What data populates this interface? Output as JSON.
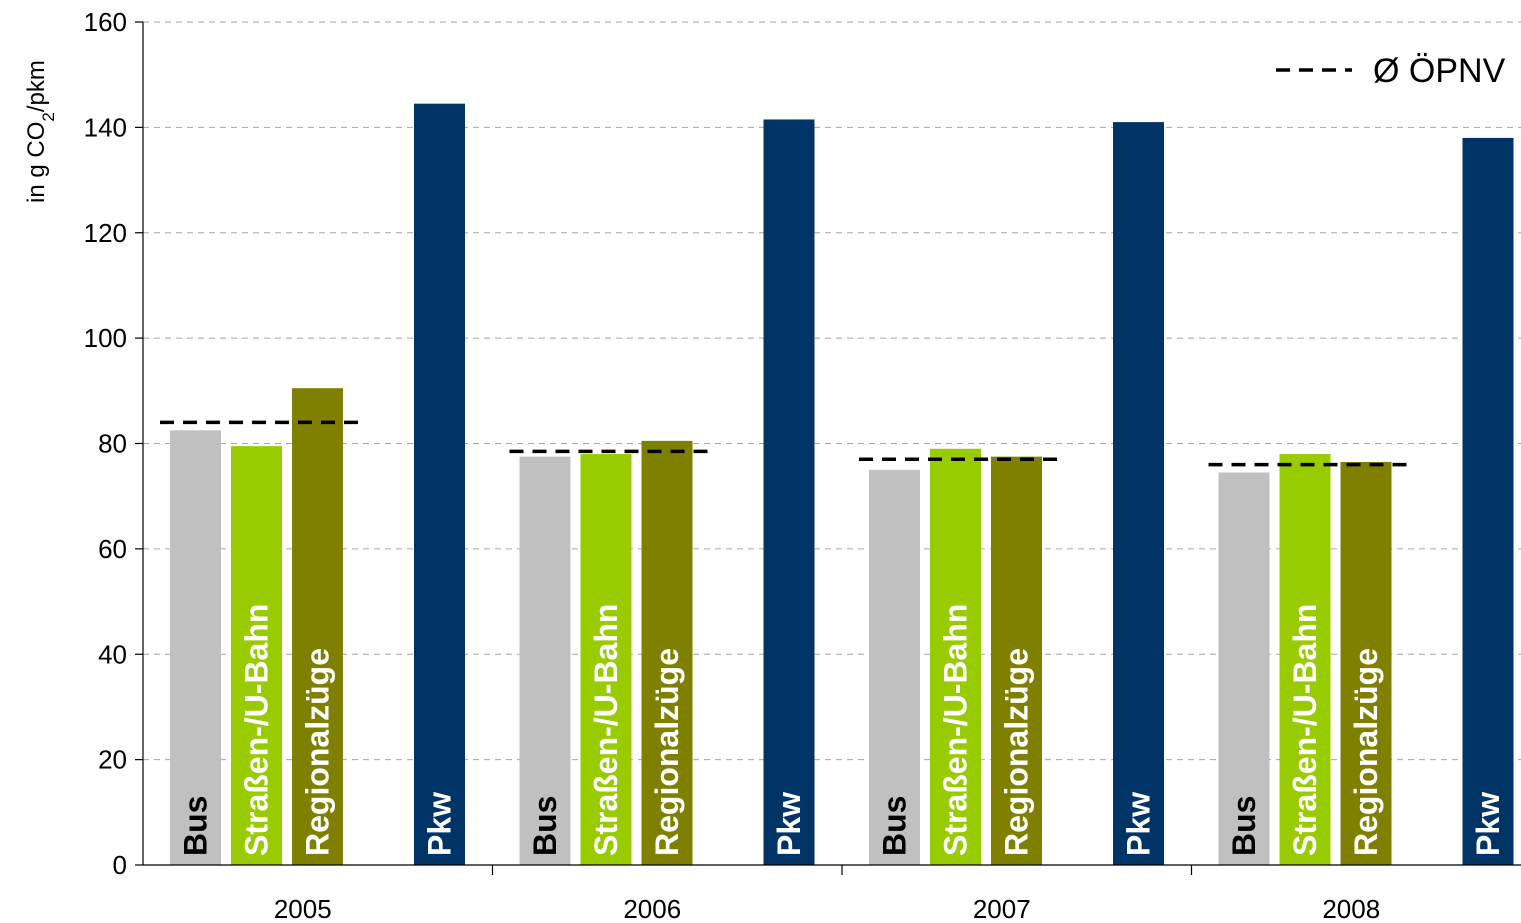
{
  "chart_data": {
    "type": "bar",
    "categories": [
      "2005",
      "2006",
      "2007",
      "2008"
    ],
    "ylabel": {
      "prefix": "in g CO",
      "subscript": "2",
      "suffix": "/pkm"
    },
    "ylim": [
      0,
      160
    ],
    "yticks": [
      0,
      20,
      40,
      60,
      80,
      100,
      120,
      140,
      160
    ],
    "grid": true,
    "legend": {
      "label": "Ø ÖPNV",
      "placement": "top-right"
    },
    "series": [
      {
        "name": "Bus",
        "color": "#c0c0c0",
        "values": [
          82.5,
          77.5,
          75,
          74.5
        ]
      },
      {
        "name": "Straßen-/U-Bahn",
        "color": "#99cc00",
        "values": [
          79.5,
          78,
          79,
          78
        ]
      },
      {
        "name": "Regionalzüge",
        "color": "#808000",
        "values": [
          90.5,
          80.5,
          77.5,
          76.5
        ]
      },
      {
        "name": "Pkw",
        "color": "#003366",
        "values": [
          144.5,
          141.5,
          141,
          138
        ]
      }
    ],
    "average_line": {
      "name": "Ø ÖPNV",
      "values": [
        84,
        78.5,
        77,
        76
      ]
    }
  }
}
